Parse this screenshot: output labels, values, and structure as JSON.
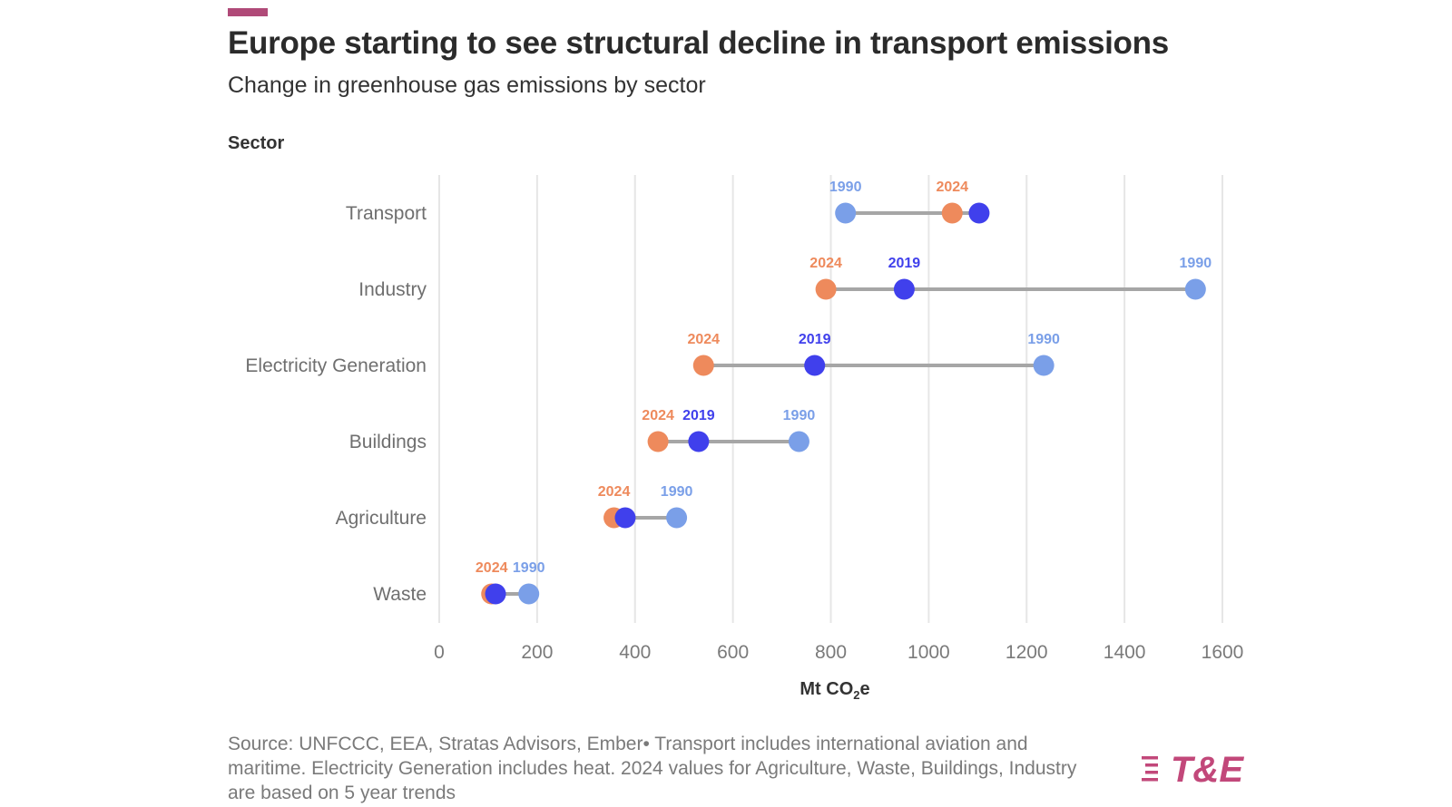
{
  "header": {
    "title": "Europe starting to see structural decline in transport emissions",
    "subtitle": "Change in greenhouse gas emissions by sector",
    "y_axis_title": "Sector"
  },
  "x_axis": {
    "label_main": "Mt CO",
    "label_sub": "2",
    "label_tail": "e"
  },
  "footer": {
    "source": "Source: UNFCCC, EEA, Stratas Advisors, Ember• Transport includes international aviation and maritime. Electricity Generation includes heat. 2024 values for Agriculture, Waste, Buildings, Industry are based on 5 year trends",
    "logo_text": "T&E"
  },
  "colors": {
    "y1990": "#7a9fe8",
    "y2019": "#4040ec",
    "y2024": "#ee8a5c",
    "connector": "#a6a6a6",
    "grid": "#e6e6e6",
    "accent": "#b04a78"
  },
  "chart_data": {
    "type": "dumbbell",
    "title": "Europe starting to see structural decline in transport emissions",
    "subtitle": "Change in greenhouse gas emissions by sector",
    "xlabel": "Mt CO₂e",
    "ylabel": "Sector",
    "xlim": [
      0,
      1600
    ],
    "xticks": [
      0,
      200,
      400,
      600,
      800,
      1000,
      1200,
      1400,
      1600
    ],
    "grid": true,
    "categories": [
      "Transport",
      "Industry",
      "Electricity Generation",
      "Buildings",
      "Agriculture",
      "Waste"
    ],
    "series": [
      {
        "name": "1990",
        "values": [
          830,
          1545,
          1235,
          735,
          485,
          183
        ]
      },
      {
        "name": "2019",
        "values": [
          1103,
          950,
          767,
          530,
          380,
          115
        ]
      },
      {
        "name": "2024",
        "values": [
          1048,
          790,
          540,
          447,
          357,
          107
        ]
      }
    ],
    "value_labels": [
      [
        "1990",
        "2024"
      ],
      [
        "2024",
        "2019",
        "1990"
      ],
      [
        "2024",
        "2019",
        "1990"
      ],
      [
        "2024",
        "2019",
        "1990"
      ],
      [
        "2024",
        "1990"
      ],
      [
        "2024",
        "1990"
      ]
    ]
  }
}
